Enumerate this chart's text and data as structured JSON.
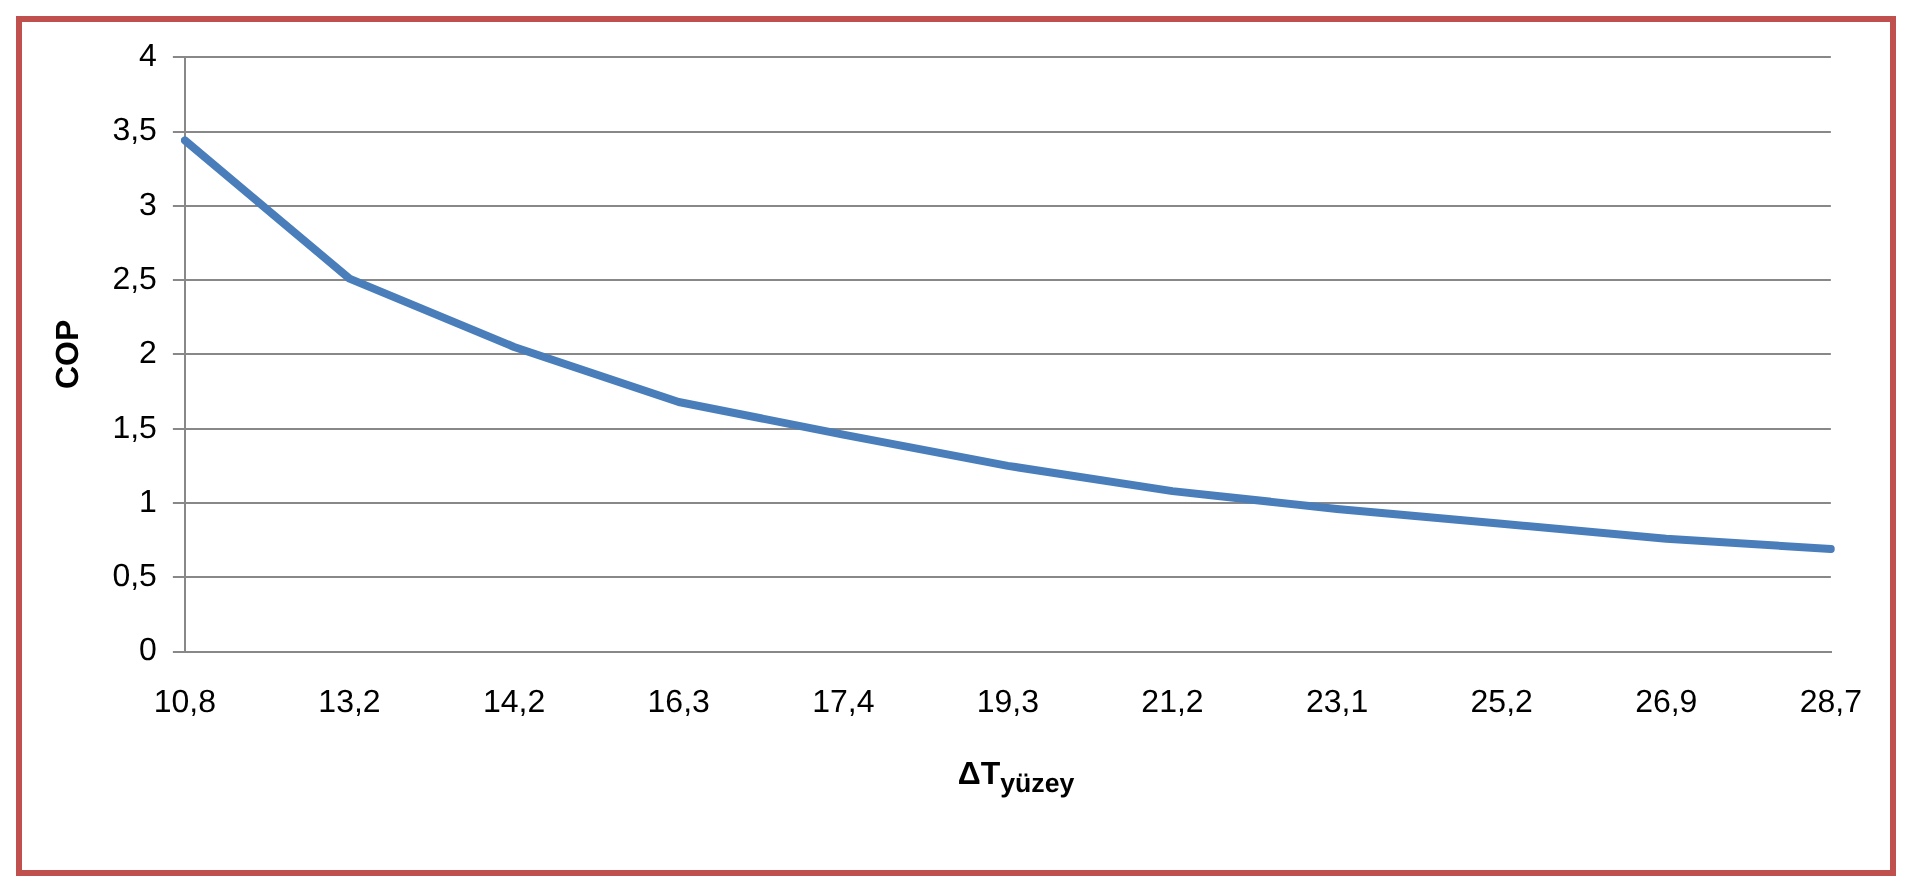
{
  "chart_data": {
    "type": "line",
    "xlabel": "ΔT$_{yüzey}$",
    "ylabel": "COP",
    "categories": [
      "10,8",
      "13,2",
      "14,2",
      "16,3",
      "17,4",
      "19,3",
      "21,2",
      "23,1",
      "25,2",
      "26,9",
      "28,7"
    ],
    "series": [
      {
        "color": "#4a7ebb",
        "values": [
          3.44,
          2.51,
          2.05,
          1.68,
          1.46,
          1.25,
          1.08,
          0.96,
          0.86,
          0.76,
          0.69
        ]
      }
    ],
    "ylim": [
      0,
      4
    ],
    "yticks": [
      0,
      {
        "value": 0.5,
        "label": "0,5"
      },
      1,
      {
        "value": 1.5,
        "label": "1,5"
      },
      2,
      {
        "value": 2.5,
        "label": "2,5"
      },
      3,
      {
        "value": 3.5,
        "label": "3,5"
      },
      4
    ],
    "grid": "y",
    "legend": false,
    "marker": "none",
    "line_style": "solid"
  }
}
